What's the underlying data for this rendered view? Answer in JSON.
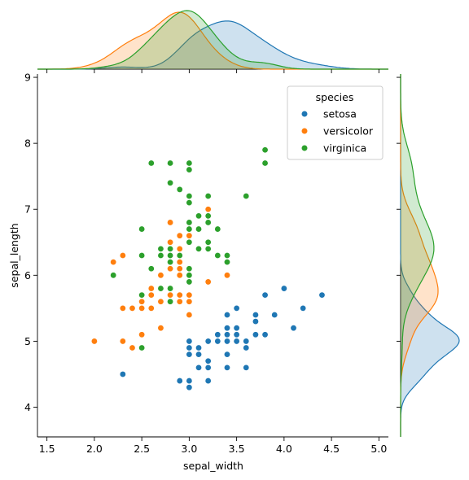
{
  "chart_data": {
    "type": "scatter",
    "xlabel": "sepal_width",
    "ylabel": "sepal_length",
    "xlim": [
      1.4,
      5.1
    ],
    "ylim": [
      3.55,
      9.05
    ],
    "xticks": [
      "1.5",
      "2.0",
      "2.5",
      "3.0",
      "3.5",
      "4.0",
      "4.5",
      "5.0"
    ],
    "yticks": [
      "4",
      "5",
      "6",
      "7",
      "8",
      "9"
    ],
    "legend": {
      "title": "species",
      "placement": "top-right"
    },
    "marginal": {
      "top": "kde of sepal_width by species",
      "right": "kde of sepal_length by species"
    },
    "series": [
      {
        "name": "setosa",
        "color": "#1f77b4",
        "points": [
          [
            3.5,
            5.1
          ],
          [
            3.0,
            4.9
          ],
          [
            3.2,
            4.7
          ],
          [
            3.1,
            4.6
          ],
          [
            3.6,
            5.0
          ],
          [
            3.9,
            5.4
          ],
          [
            3.4,
            4.6
          ],
          [
            3.4,
            5.0
          ],
          [
            2.9,
            4.4
          ],
          [
            3.1,
            4.9
          ],
          [
            3.7,
            5.4
          ],
          [
            3.4,
            4.8
          ],
          [
            3.0,
            4.8
          ],
          [
            3.0,
            4.3
          ],
          [
            4.0,
            5.8
          ],
          [
            4.4,
            5.7
          ],
          [
            3.9,
            5.4
          ],
          [
            3.5,
            5.1
          ],
          [
            3.8,
            5.7
          ],
          [
            3.8,
            5.1
          ],
          [
            3.4,
            5.4
          ],
          [
            3.7,
            5.1
          ],
          [
            3.6,
            4.6
          ],
          [
            3.3,
            5.1
          ],
          [
            3.4,
            4.8
          ],
          [
            3.0,
            5.0
          ],
          [
            3.4,
            5.0
          ],
          [
            3.5,
            5.2
          ],
          [
            3.4,
            5.2
          ],
          [
            3.2,
            4.7
          ],
          [
            3.1,
            4.8
          ],
          [
            3.4,
            5.4
          ],
          [
            4.1,
            5.2
          ],
          [
            4.2,
            5.5
          ],
          [
            3.1,
            4.9
          ],
          [
            3.2,
            5.0
          ],
          [
            3.5,
            5.5
          ],
          [
            3.6,
            4.9
          ],
          [
            3.0,
            4.4
          ],
          [
            3.4,
            5.1
          ],
          [
            3.5,
            5.0
          ],
          [
            2.3,
            4.5
          ],
          [
            3.2,
            4.4
          ],
          [
            3.5,
            5.0
          ],
          [
            3.8,
            5.1
          ],
          [
            3.0,
            4.8
          ],
          [
            3.8,
            5.1
          ],
          [
            3.2,
            4.6
          ],
          [
            3.7,
            5.3
          ],
          [
            3.3,
            5.0
          ]
        ]
      },
      {
        "name": "versicolor",
        "color": "#ff7f0e",
        "points": [
          [
            3.2,
            7.0
          ],
          [
            3.2,
            6.4
          ],
          [
            3.1,
            6.9
          ],
          [
            2.3,
            5.5
          ],
          [
            2.8,
            6.5
          ],
          [
            2.8,
            5.7
          ],
          [
            3.3,
            6.3
          ],
          [
            2.4,
            4.9
          ],
          [
            2.9,
            6.6
          ],
          [
            2.7,
            5.2
          ],
          [
            2.0,
            5.0
          ],
          [
            3.0,
            5.9
          ],
          [
            2.2,
            6.0
          ],
          [
            2.9,
            6.1
          ],
          [
            2.9,
            5.6
          ],
          [
            3.1,
            6.7
          ],
          [
            3.0,
            5.6
          ],
          [
            2.7,
            5.8
          ],
          [
            2.2,
            6.2
          ],
          [
            2.5,
            5.6
          ],
          [
            3.2,
            5.9
          ],
          [
            2.8,
            6.1
          ],
          [
            2.5,
            6.3
          ],
          [
            2.8,
            6.1
          ],
          [
            2.9,
            6.4
          ],
          [
            3.0,
            6.6
          ],
          [
            2.8,
            6.8
          ],
          [
            3.0,
            6.7
          ],
          [
            2.9,
            6.0
          ],
          [
            2.6,
            5.7
          ],
          [
            2.4,
            5.5
          ],
          [
            2.4,
            5.5
          ],
          [
            2.7,
            5.8
          ],
          [
            2.7,
            6.0
          ],
          [
            3.0,
            5.4
          ],
          [
            3.4,
            6.0
          ],
          [
            3.1,
            6.7
          ],
          [
            2.3,
            6.3
          ],
          [
            3.0,
            5.6
          ],
          [
            2.5,
            5.5
          ],
          [
            2.6,
            5.5
          ],
          [
            3.0,
            6.1
          ],
          [
            2.6,
            5.8
          ],
          [
            2.3,
            5.0
          ],
          [
            2.7,
            5.6
          ],
          [
            3.0,
            5.7
          ],
          [
            2.9,
            5.7
          ],
          [
            2.9,
            6.2
          ],
          [
            2.5,
            5.1
          ],
          [
            2.8,
            5.7
          ]
        ]
      },
      {
        "name": "virginica",
        "color": "#2ca02c",
        "points": [
          [
            3.3,
            6.3
          ],
          [
            2.7,
            5.8
          ],
          [
            3.0,
            7.1
          ],
          [
            2.9,
            6.3
          ],
          [
            3.0,
            6.5
          ],
          [
            3.0,
            7.6
          ],
          [
            2.5,
            4.9
          ],
          [
            2.9,
            7.3
          ],
          [
            2.5,
            6.7
          ],
          [
            3.6,
            7.2
          ],
          [
            3.2,
            6.5
          ],
          [
            2.7,
            6.4
          ],
          [
            3.0,
            6.8
          ],
          [
            2.5,
            5.7
          ],
          [
            2.8,
            5.8
          ],
          [
            3.2,
            6.4
          ],
          [
            3.0,
            6.5
          ],
          [
            3.8,
            7.7
          ],
          [
            2.6,
            7.7
          ],
          [
            2.2,
            6.0
          ],
          [
            3.2,
            6.9
          ],
          [
            2.8,
            5.6
          ],
          [
            2.8,
            7.7
          ],
          [
            2.7,
            6.3
          ],
          [
            3.3,
            6.7
          ],
          [
            3.2,
            7.2
          ],
          [
            2.8,
            6.2
          ],
          [
            3.0,
            6.1
          ],
          [
            2.8,
            6.4
          ],
          [
            3.0,
            7.2
          ],
          [
            2.8,
            7.4
          ],
          [
            3.8,
            7.9
          ],
          [
            2.8,
            6.4
          ],
          [
            2.8,
            6.3
          ],
          [
            2.6,
            6.1
          ],
          [
            3.0,
            7.7
          ],
          [
            3.4,
            6.3
          ],
          [
            3.1,
            6.4
          ],
          [
            3.0,
            6.0
          ],
          [
            3.1,
            6.9
          ],
          [
            3.1,
            6.7
          ],
          [
            3.1,
            6.9
          ],
          [
            2.7,
            5.8
          ],
          [
            3.2,
            6.8
          ],
          [
            3.3,
            6.7
          ],
          [
            3.0,
            6.7
          ],
          [
            2.5,
            6.3
          ],
          [
            3.0,
            6.5
          ],
          [
            3.4,
            6.2
          ],
          [
            3.0,
            5.9
          ]
        ]
      }
    ]
  }
}
